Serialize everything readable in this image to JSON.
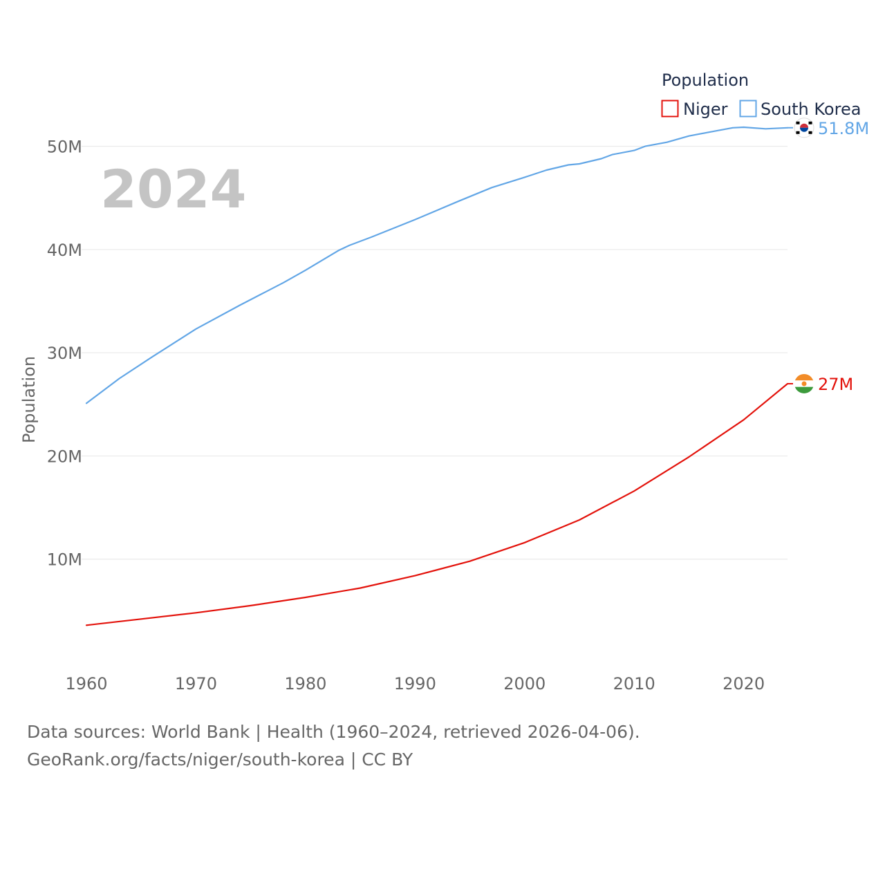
{
  "chart_data": {
    "type": "line",
    "big_year_label": "2024",
    "ylabel": "Population",
    "xlabel": "",
    "xlim": [
      1960,
      2024
    ],
    "ylim": [
      0,
      55000000
    ],
    "x_ticks": [
      {
        "value": 1960,
        "label": "1960"
      },
      {
        "value": 1970,
        "label": "1970"
      },
      {
        "value": 1980,
        "label": "1980"
      },
      {
        "value": 1990,
        "label": "1990"
      },
      {
        "value": 2000,
        "label": "2000"
      },
      {
        "value": 2010,
        "label": "2010"
      },
      {
        "value": 2020,
        "label": "2020"
      }
    ],
    "y_ticks": [
      {
        "value": 10000000,
        "label": "10M"
      },
      {
        "value": 20000000,
        "label": "20M"
      },
      {
        "value": 30000000,
        "label": "30M"
      },
      {
        "value": 40000000,
        "label": "40M"
      },
      {
        "value": 50000000,
        "label": "50M"
      }
    ],
    "legend": {
      "title": "Population",
      "position": "top-right",
      "entries": [
        {
          "name": "Niger",
          "color": "#e3120b"
        },
        {
          "name": "South Korea",
          "color": "#62a6e6"
        }
      ]
    },
    "series": [
      {
        "name": "Niger",
        "color": "#e3120b",
        "end_label": "27M",
        "flag": "niger-flag-icon",
        "x": [
          1960,
          1965,
          1970,
          1975,
          1980,
          1985,
          1990,
          1995,
          2000,
          2005,
          2010,
          2015,
          2020,
          2024
        ],
        "values": [
          3600000,
          4200000,
          4800000,
          5500000,
          6300000,
          7200000,
          8400000,
          9800000,
          11600000,
          13800000,
          16600000,
          19900000,
          23500000,
          27000000
        ]
      },
      {
        "name": "South Korea",
        "color": "#62a6e6",
        "end_label": "51.8M",
        "flag": "south-korea-flag-icon",
        "x": [
          1960,
          1963,
          1966,
          1970,
          1974,
          1978,
          1980,
          1983,
          1984,
          1986,
          1990,
          1994,
          1997,
          2000,
          2002,
          2004,
          2005,
          2007,
          2008,
          2010,
          2011,
          2013,
          2015,
          2017,
          2019,
          2020,
          2022,
          2024
        ],
        "values": [
          25100000,
          27500000,
          29600000,
          32300000,
          34600000,
          36800000,
          38000000,
          39900000,
          40400000,
          41200000,
          42900000,
          44700000,
          46000000,
          47000000,
          47700000,
          48200000,
          48300000,
          48800000,
          49200000,
          49600000,
          50000000,
          50400000,
          51000000,
          51400000,
          51800000,
          51850000,
          51700000,
          51800000
        ]
      }
    ]
  },
  "footer": {
    "line1": "Data sources: World Bank | Health (1960–2024, retrieved 2026-04-06).",
    "line2": "GeoRank.org/facts/niger/south-korea | CC BY"
  }
}
